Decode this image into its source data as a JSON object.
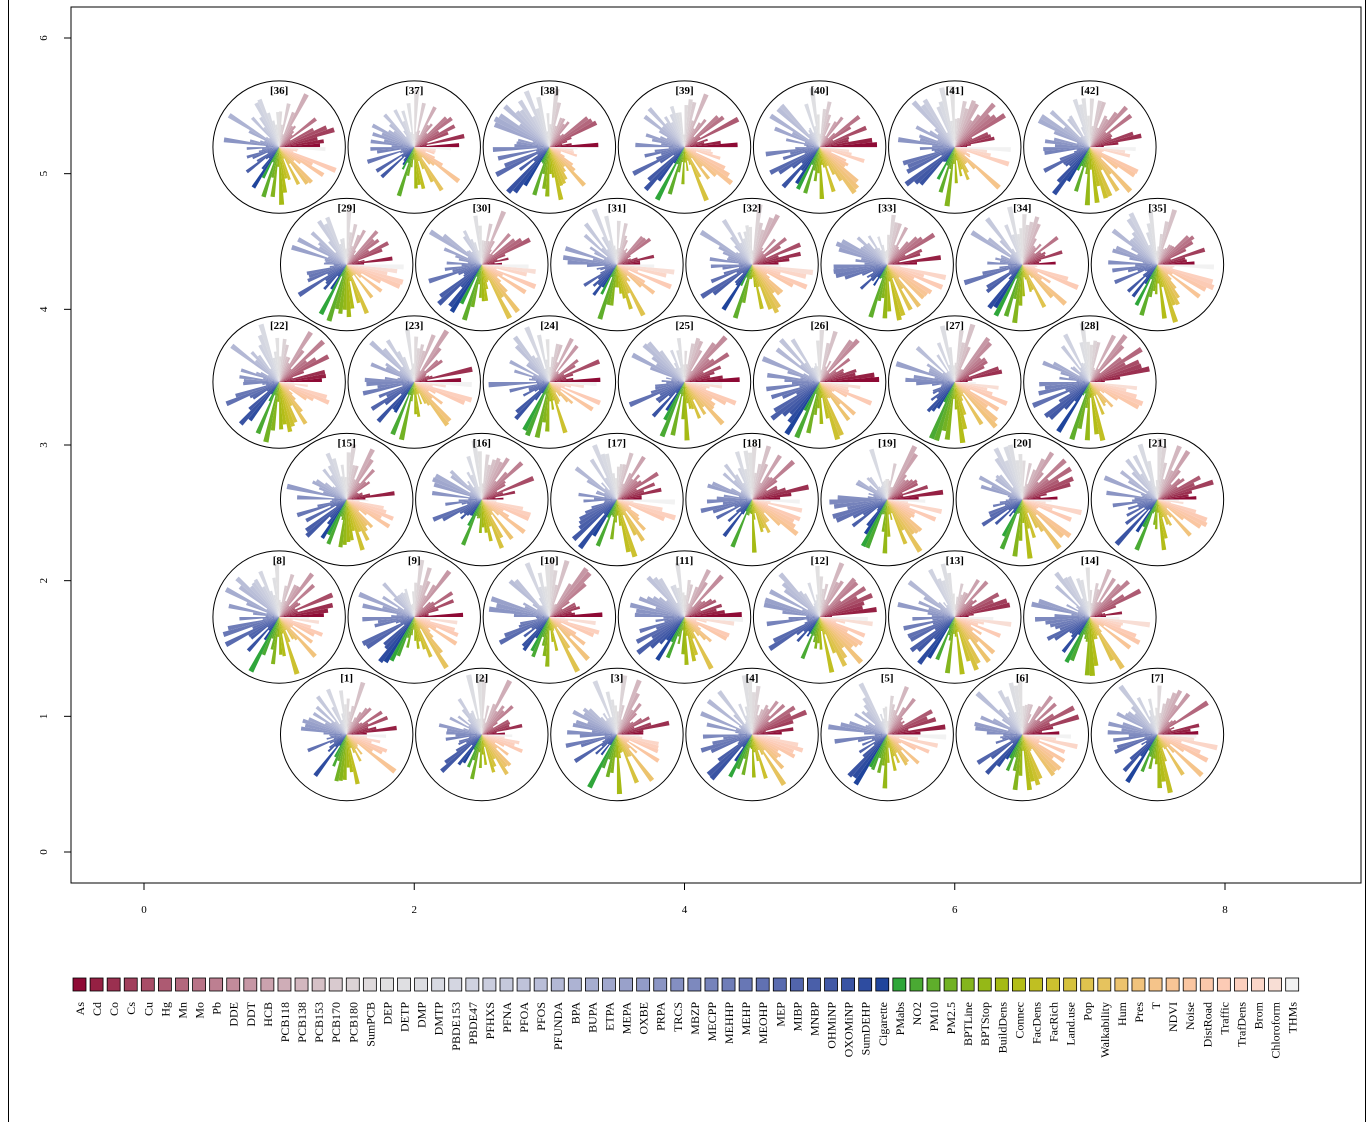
{
  "chart_data": {
    "type": "som-segment-map",
    "xlim": [
      -0.5,
      9.0
    ],
    "ylim": [
      -0.3,
      6.2
    ],
    "x_ticks": [
      "0",
      "2",
      "4",
      "6",
      "8"
    ],
    "y_ticks": [
      "0",
      "1",
      "2",
      "3",
      "4",
      "5",
      "6"
    ],
    "grid": false,
    "legend_position": "bottom",
    "nodes": [
      {
        "label": "[1]",
        "x": 1.5,
        "y": 0.866
      },
      {
        "label": "[2]",
        "x": 2.5,
        "y": 0.866
      },
      {
        "label": "[3]",
        "x": 3.5,
        "y": 0.866
      },
      {
        "label": "[4]",
        "x": 4.5,
        "y": 0.866
      },
      {
        "label": "[5]",
        "x": 5.5,
        "y": 0.866
      },
      {
        "label": "[6]",
        "x": 6.5,
        "y": 0.866
      },
      {
        "label": "[7]",
        "x": 7.5,
        "y": 0.866
      },
      {
        "label": "[8]",
        "x": 1.0,
        "y": 1.732
      },
      {
        "label": "[9]",
        "x": 2.0,
        "y": 1.732
      },
      {
        "label": "[10]",
        "x": 3.0,
        "y": 1.732
      },
      {
        "label": "[11]",
        "x": 4.0,
        "y": 1.732
      },
      {
        "label": "[12]",
        "x": 5.0,
        "y": 1.732
      },
      {
        "label": "[13]",
        "x": 6.0,
        "y": 1.732
      },
      {
        "label": "[14]",
        "x": 7.0,
        "y": 1.732
      },
      {
        "label": "[15]",
        "x": 1.5,
        "y": 2.598
      },
      {
        "label": "[16]",
        "x": 2.5,
        "y": 2.598
      },
      {
        "label": "[17]",
        "x": 3.5,
        "y": 2.598
      },
      {
        "label": "[18]",
        "x": 4.5,
        "y": 2.598
      },
      {
        "label": "[19]",
        "x": 5.5,
        "y": 2.598
      },
      {
        "label": "[20]",
        "x": 6.5,
        "y": 2.598
      },
      {
        "label": "[21]",
        "x": 7.5,
        "y": 2.598
      },
      {
        "label": "[22]",
        "x": 1.0,
        "y": 3.464
      },
      {
        "label": "[23]",
        "x": 2.0,
        "y": 3.464
      },
      {
        "label": "[24]",
        "x": 3.0,
        "y": 3.464
      },
      {
        "label": "[25]",
        "x": 4.0,
        "y": 3.464
      },
      {
        "label": "[26]",
        "x": 5.0,
        "y": 3.464
      },
      {
        "label": "[27]",
        "x": 6.0,
        "y": 3.464
      },
      {
        "label": "[28]",
        "x": 7.0,
        "y": 3.464
      },
      {
        "label": "[29]",
        "x": 1.5,
        "y": 4.33
      },
      {
        "label": "[30]",
        "x": 2.5,
        "y": 4.33
      },
      {
        "label": "[31]",
        "x": 3.5,
        "y": 4.33
      },
      {
        "label": "[32]",
        "x": 4.5,
        "y": 4.33
      },
      {
        "label": "[33]",
        "x": 5.5,
        "y": 4.33
      },
      {
        "label": "[34]",
        "x": 6.5,
        "y": 4.33
      },
      {
        "label": "[35]",
        "x": 7.5,
        "y": 4.33
      },
      {
        "label": "[36]",
        "x": 1.0,
        "y": 5.196
      },
      {
        "label": "[37]",
        "x": 2.0,
        "y": 5.196
      },
      {
        "label": "[38]",
        "x": 3.0,
        "y": 5.196
      },
      {
        "label": "[39]",
        "x": 4.0,
        "y": 5.196
      },
      {
        "label": "[40]",
        "x": 5.0,
        "y": 5.196
      },
      {
        "label": "[41]",
        "x": 6.0,
        "y": 5.196
      },
      {
        "label": "[42]",
        "x": 7.0,
        "y": 5.196
      }
    ],
    "variables": [
      {
        "name": "As",
        "color": "#8e0a35"
      },
      {
        "name": "Cd",
        "color": "#952043"
      },
      {
        "name": "Co",
        "color": "#9b3050"
      },
      {
        "name": "Cs",
        "color": "#a13f5c"
      },
      {
        "name": "Cu",
        "color": "#a84d67"
      },
      {
        "name": "Hg",
        "color": "#ad5a72"
      },
      {
        "name": "Mn",
        "color": "#b3677d"
      },
      {
        "name": "Mo",
        "color": "#b87387"
      },
      {
        "name": "Pb",
        "color": "#bd7f91"
      },
      {
        "name": "DDE",
        "color": "#c28b9b"
      },
      {
        "name": "DDT",
        "color": "#c697a5"
      },
      {
        "name": "HCB",
        "color": "#cba2ae"
      },
      {
        "name": "PCB118",
        "color": "#cfadb7"
      },
      {
        "name": "PCB138",
        "color": "#d3b7bf"
      },
      {
        "name": "PCB153",
        "color": "#d6c1c7"
      },
      {
        "name": "PCB170",
        "color": "#d9cacf"
      },
      {
        "name": "PCB180",
        "color": "#dcd3d6"
      },
      {
        "name": "SumPCB",
        "color": "#dfdadc"
      },
      {
        "name": "DEP",
        "color": "#e1e0e1"
      },
      {
        "name": "DETP",
        "color": "#dfdfe2"
      },
      {
        "name": "DMP",
        "color": "#dcdde2"
      },
      {
        "name": "DMTP",
        "color": "#d8dae2"
      },
      {
        "name": "PBDE153",
        "color": "#d4d6e1"
      },
      {
        "name": "PBDE47",
        "color": "#cfd2e0"
      },
      {
        "name": "PFHXS",
        "color": "#cacdde"
      },
      {
        "name": "PFNA",
        "color": "#c5c9dc"
      },
      {
        "name": "PFOA",
        "color": "#bfc3da"
      },
      {
        "name": "PFOS",
        "color": "#b9bed8"
      },
      {
        "name": "PFUNDA",
        "color": "#b3b8d5"
      },
      {
        "name": "BPA",
        "color": "#adb3d3"
      },
      {
        "name": "BUPA",
        "color": "#a6add0"
      },
      {
        "name": "ETPA",
        "color": "#a0a7cd"
      },
      {
        "name": "MEPA",
        "color": "#99a1ca"
      },
      {
        "name": "OXBE",
        "color": "#929bc7"
      },
      {
        "name": "PRPA",
        "color": "#8b95c4"
      },
      {
        "name": "TRCS",
        "color": "#848fc1"
      },
      {
        "name": "MBZP",
        "color": "#7d89be"
      },
      {
        "name": "MECPP",
        "color": "#7683bb"
      },
      {
        "name": "MEHHP",
        "color": "#6f7db8"
      },
      {
        "name": "MEHP",
        "color": "#6877b5"
      },
      {
        "name": "MEOHP",
        "color": "#6171b2"
      },
      {
        "name": "MEP",
        "color": "#596baf"
      },
      {
        "name": "MIBP",
        "color": "#5265ac"
      },
      {
        "name": "MNBP",
        "color": "#4a5fa9"
      },
      {
        "name": "OHMiNP",
        "color": "#4259a6"
      },
      {
        "name": "OXOMiNP",
        "color": "#3953a3"
      },
      {
        "name": "SumDEHP",
        "color": "#2e4ca0"
      },
      {
        "name": "Cigarette",
        "color": "#1f449c"
      },
      {
        "name": "PMabs",
        "color": "#2fa63a"
      },
      {
        "name": "NO2",
        "color": "#4aaa33"
      },
      {
        "name": "PM10",
        "color": "#5fae2b"
      },
      {
        "name": "PM2.5",
        "color": "#72b224"
      },
      {
        "name": "BPTLine",
        "color": "#84b51d"
      },
      {
        "name": "BPTStop",
        "color": "#95b817"
      },
      {
        "name": "BuildDens",
        "color": "#a5ba14"
      },
      {
        "name": "Connec",
        "color": "#b3bd18"
      },
      {
        "name": "FacDens",
        "color": "#c0bf22"
      },
      {
        "name": "FacRich",
        "color": "#ccc12f"
      },
      {
        "name": "Land.use",
        "color": "#d6c23e"
      },
      {
        "name": "Pop",
        "color": "#dfc34e"
      },
      {
        "name": "Walkability",
        "color": "#e6c35e"
      },
      {
        "name": "Hum",
        "color": "#ecc36d"
      },
      {
        "name": "Pres",
        "color": "#f1c37c"
      },
      {
        "name": "T",
        "color": "#f5c48a"
      },
      {
        "name": "NDVI",
        "color": "#f8c596"
      },
      {
        "name": "Noise",
        "color": "#fac6a1"
      },
      {
        "name": "DistRoad",
        "color": "#fbc8ab"
      },
      {
        "name": "Traffic",
        "color": "#fccbb5"
      },
      {
        "name": "TrafDens",
        "color": "#fcd0be"
      },
      {
        "name": "Brom",
        "color": "#fbd6c8"
      },
      {
        "name": "Chloroform",
        "color": "#f8ded5"
      },
      {
        "name": "THMs",
        "color": "#f2f2f2"
      }
    ]
  }
}
